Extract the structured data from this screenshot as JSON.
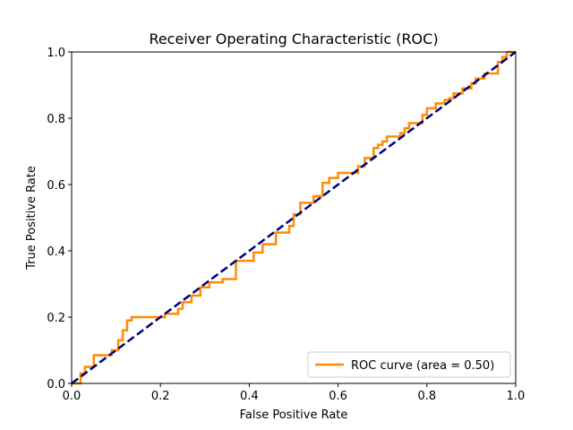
{
  "chart_data": {
    "type": "line",
    "title": "Receiver Operating Characteristic (ROC)",
    "xlabel": "False Positive Rate",
    "ylabel": "True Positive Rate",
    "xlim": [
      0.0,
      1.0
    ],
    "ylim": [
      0.0,
      1.0
    ],
    "x_ticks": [
      "0.0",
      "0.2",
      "0.4",
      "0.6",
      "0.8",
      "1.0"
    ],
    "y_ticks": [
      "0.0",
      "0.2",
      "0.4",
      "0.6",
      "0.8",
      "1.0"
    ],
    "grid": false,
    "legend_position": "lower-right",
    "series": [
      {
        "name": "ROC curve (area = 0.50)",
        "style": "solid",
        "color": "#ff8c00",
        "x": [
          0.0,
          0.0,
          0.02,
          0.02,
          0.03,
          0.03,
          0.05,
          0.05,
          0.09,
          0.09,
          0.105,
          0.105,
          0.115,
          0.115,
          0.125,
          0.125,
          0.135,
          0.135,
          0.21,
          0.21,
          0.24,
          0.24,
          0.25,
          0.25,
          0.27,
          0.27,
          0.29,
          0.29,
          0.31,
          0.31,
          0.34,
          0.34,
          0.37,
          0.37,
          0.41,
          0.41,
          0.43,
          0.43,
          0.46,
          0.46,
          0.49,
          0.49,
          0.5,
          0.5,
          0.515,
          0.515,
          0.545,
          0.545,
          0.565,
          0.565,
          0.58,
          0.58,
          0.6,
          0.6,
          0.645,
          0.645,
          0.66,
          0.66,
          0.68,
          0.68,
          0.69,
          0.69,
          0.7,
          0.7,
          0.71,
          0.71,
          0.74,
          0.74,
          0.75,
          0.75,
          0.76,
          0.76,
          0.79,
          0.79,
          0.8,
          0.8,
          0.82,
          0.82,
          0.84,
          0.84,
          0.85,
          0.85,
          0.86,
          0.86,
          0.88,
          0.88,
          0.9,
          0.9,
          0.91,
          0.91,
          0.93,
          0.93,
          0.96,
          0.96,
          0.97,
          0.97,
          0.98,
          0.98,
          1.0
        ],
        "y": [
          0.0,
          0.0,
          0.0,
          0.03,
          0.03,
          0.05,
          0.05,
          0.085,
          0.085,
          0.1,
          0.1,
          0.13,
          0.13,
          0.16,
          0.16,
          0.19,
          0.19,
          0.2,
          0.2,
          0.21,
          0.21,
          0.225,
          0.225,
          0.245,
          0.245,
          0.265,
          0.265,
          0.29,
          0.29,
          0.305,
          0.305,
          0.315,
          0.315,
          0.37,
          0.37,
          0.395,
          0.395,
          0.42,
          0.42,
          0.455,
          0.455,
          0.475,
          0.475,
          0.51,
          0.51,
          0.545,
          0.545,
          0.565,
          0.565,
          0.605,
          0.605,
          0.62,
          0.62,
          0.635,
          0.635,
          0.655,
          0.655,
          0.68,
          0.68,
          0.71,
          0.71,
          0.72,
          0.72,
          0.73,
          0.73,
          0.745,
          0.745,
          0.755,
          0.755,
          0.77,
          0.77,
          0.785,
          0.785,
          0.81,
          0.81,
          0.83,
          0.83,
          0.845,
          0.845,
          0.855,
          0.855,
          0.86,
          0.86,
          0.875,
          0.875,
          0.89,
          0.89,
          0.905,
          0.905,
          0.92,
          0.92,
          0.935,
          0.935,
          0.97,
          0.97,
          0.985,
          0.985,
          1.0,
          1.0
        ]
      },
      {
        "name": "",
        "style": "dashed",
        "color": "#000080",
        "x": [
          0.0,
          1.0
        ],
        "y": [
          0.0,
          1.0
        ]
      }
    ]
  }
}
